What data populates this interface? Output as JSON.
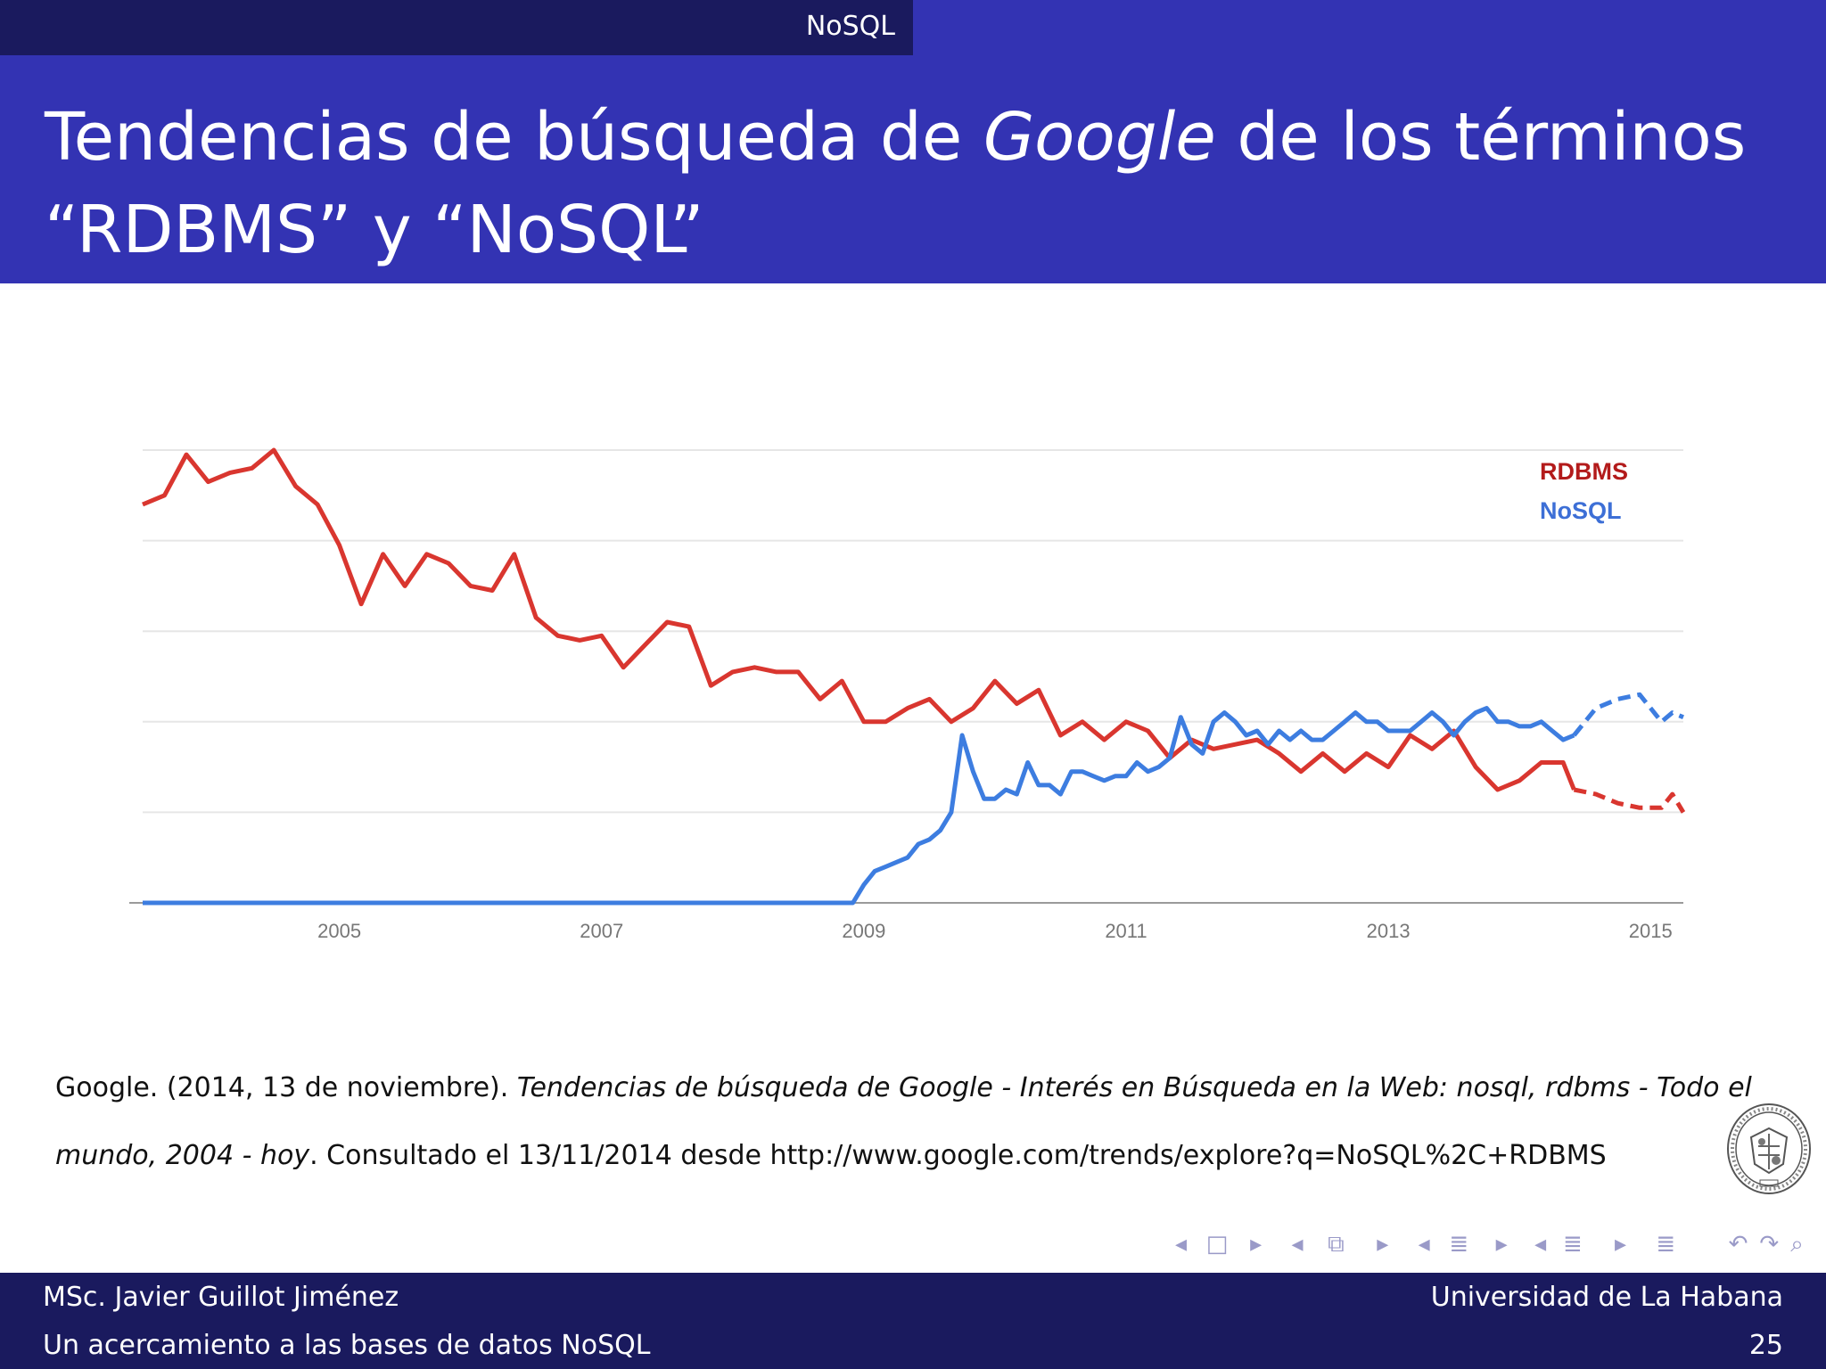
{
  "header": {
    "section": "NoSQL"
  },
  "title": {
    "line1_pre": "Tendencias de búsqueda de ",
    "line1_italic": "Google",
    "line1_post": " de los términos",
    "line2": "“RDBMS” y “NoSQL”"
  },
  "chart_data": {
    "type": "line",
    "title": "",
    "xlabel": "",
    "ylabel": "",
    "x_range": [
      "2004-01",
      "2015-10"
    ],
    "ylim": [
      0,
      100
    ],
    "grid": true,
    "legend_position": "top-right",
    "x_tick_labels": [
      "2005",
      "2007",
      "2009",
      "2011",
      "2013",
      "2015"
    ],
    "series": [
      {
        "name": "RDBMS",
        "color": "#d9362f",
        "legend_color": "#b31b1b",
        "dashed_from": "2014-12",
        "points": [
          [
            "2004-01",
            88
          ],
          [
            "2004-03",
            90
          ],
          [
            "2004-05",
            99
          ],
          [
            "2004-07",
            93
          ],
          [
            "2004-09",
            95
          ],
          [
            "2004-11",
            96
          ],
          [
            "2005-01",
            100
          ],
          [
            "2005-03",
            92
          ],
          [
            "2005-05",
            88
          ],
          [
            "2005-07",
            79
          ],
          [
            "2005-09",
            66
          ],
          [
            "2005-11",
            77
          ],
          [
            "2006-01",
            70
          ],
          [
            "2006-03",
            77
          ],
          [
            "2006-05",
            75
          ],
          [
            "2006-07",
            70
          ],
          [
            "2006-09",
            69
          ],
          [
            "2006-11",
            77
          ],
          [
            "2007-01",
            63
          ],
          [
            "2007-03",
            59
          ],
          [
            "2007-05",
            58
          ],
          [
            "2007-07",
            59
          ],
          [
            "2007-09",
            52
          ],
          [
            "2007-11",
            57
          ],
          [
            "2008-01",
            62
          ],
          [
            "2008-03",
            61
          ],
          [
            "2008-05",
            48
          ],
          [
            "2008-07",
            51
          ],
          [
            "2008-09",
            52
          ],
          [
            "2008-11",
            51
          ],
          [
            "2009-01",
            51
          ],
          [
            "2009-03",
            45
          ],
          [
            "2009-05",
            49
          ],
          [
            "2009-07",
            40
          ],
          [
            "2009-09",
            40
          ],
          [
            "2009-11",
            43
          ],
          [
            "2010-01",
            45
          ],
          [
            "2010-03",
            40
          ],
          [
            "2010-05",
            43
          ],
          [
            "2010-07",
            49
          ],
          [
            "2010-09",
            44
          ],
          [
            "2010-11",
            47
          ],
          [
            "2011-01",
            37
          ],
          [
            "2011-03",
            40
          ],
          [
            "2011-05",
            36
          ],
          [
            "2011-07",
            40
          ],
          [
            "2011-09",
            38
          ],
          [
            "2011-11",
            32
          ],
          [
            "2012-01",
            36
          ],
          [
            "2012-03",
            34
          ],
          [
            "2012-05",
            35
          ],
          [
            "2012-07",
            36
          ],
          [
            "2012-09",
            33
          ],
          [
            "2012-11",
            29
          ],
          [
            "2013-01",
            33
          ],
          [
            "2013-03",
            29
          ],
          [
            "2013-05",
            33
          ],
          [
            "2013-07",
            30
          ],
          [
            "2013-09",
            37
          ],
          [
            "2013-11",
            34
          ],
          [
            "2014-01",
            38
          ],
          [
            "2014-03",
            30
          ],
          [
            "2014-05",
            25
          ],
          [
            "2014-07",
            27
          ],
          [
            "2014-09",
            31
          ],
          [
            "2014-11",
            31
          ],
          [
            "2014-12",
            25
          ],
          [
            "2015-02",
            24
          ],
          [
            "2015-04",
            22
          ],
          [
            "2015-06",
            21
          ],
          [
            "2015-08",
            21
          ],
          [
            "2015-09",
            24
          ],
          [
            "2015-10",
            20
          ]
        ]
      },
      {
        "name": "NoSQL",
        "color": "#3d7de0",
        "legend_color": "#3d6fd6",
        "dashed_from": "2014-12",
        "points": [
          [
            "2004-01",
            0
          ],
          [
            "2004-11",
            0
          ],
          [
            "2005-11",
            0
          ],
          [
            "2006-11",
            0
          ],
          [
            "2007-11",
            0
          ],
          [
            "2008-11",
            0
          ],
          [
            "2009-06",
            0
          ],
          [
            "2009-07",
            4
          ],
          [
            "2009-08",
            7
          ],
          [
            "2009-09",
            8
          ],
          [
            "2009-10",
            9
          ],
          [
            "2009-11",
            10
          ],
          [
            "2009-12",
            13
          ],
          [
            "2010-01",
            14
          ],
          [
            "2010-02",
            16
          ],
          [
            "2010-03",
            20
          ],
          [
            "2010-04",
            37
          ],
          [
            "2010-05",
            29
          ],
          [
            "2010-06",
            23
          ],
          [
            "2010-07",
            23
          ],
          [
            "2010-08",
            25
          ],
          [
            "2010-09",
            24
          ],
          [
            "2010-10",
            31
          ],
          [
            "2010-11",
            26
          ],
          [
            "2010-12",
            26
          ],
          [
            "2011-01",
            24
          ],
          [
            "2011-02",
            29
          ],
          [
            "2011-03",
            29
          ],
          [
            "2011-04",
            28
          ],
          [
            "2011-05",
            27
          ],
          [
            "2011-06",
            28
          ],
          [
            "2011-07",
            28
          ],
          [
            "2011-08",
            31
          ],
          [
            "2011-09",
            29
          ],
          [
            "2011-10",
            30
          ],
          [
            "2011-11",
            32
          ],
          [
            "2011-12",
            41
          ],
          [
            "2012-01",
            35
          ],
          [
            "2012-02",
            33
          ],
          [
            "2012-03",
            40
          ],
          [
            "2012-04",
            42
          ],
          [
            "2012-05",
            40
          ],
          [
            "2012-06",
            37
          ],
          [
            "2012-07",
            38
          ],
          [
            "2012-08",
            35
          ],
          [
            "2012-09",
            38
          ],
          [
            "2012-10",
            36
          ],
          [
            "2012-11",
            38
          ],
          [
            "2012-12",
            36
          ],
          [
            "2013-01",
            36
          ],
          [
            "2013-02",
            38
          ],
          [
            "2013-03",
            40
          ],
          [
            "2013-04",
            42
          ],
          [
            "2013-05",
            40
          ],
          [
            "2013-06",
            40
          ],
          [
            "2013-07",
            38
          ],
          [
            "2013-08",
            38
          ],
          [
            "2013-09",
            38
          ],
          [
            "2013-10",
            40
          ],
          [
            "2013-11",
            42
          ],
          [
            "2013-12",
            40
          ],
          [
            "2014-01",
            37
          ],
          [
            "2014-02",
            40
          ],
          [
            "2014-03",
            42
          ],
          [
            "2014-04",
            43
          ],
          [
            "2014-05",
            40
          ],
          [
            "2014-06",
            40
          ],
          [
            "2014-07",
            39
          ],
          [
            "2014-08",
            39
          ],
          [
            "2014-09",
            40
          ],
          [
            "2014-10",
            38
          ],
          [
            "2014-11",
            36
          ],
          [
            "2014-12",
            37
          ],
          [
            "2015-02",
            43
          ],
          [
            "2015-04",
            45
          ],
          [
            "2015-06",
            46
          ],
          [
            "2015-08",
            40
          ],
          [
            "2015-09",
            42
          ],
          [
            "2015-10",
            41
          ]
        ]
      }
    ]
  },
  "citation": {
    "author": "Google. (2014, 13 de noviembre). ",
    "work_title_1": "Tendencias de búsqueda de Google - Interés en Búsqueda en la Web: nosql, rdbms - Todo el mundo, 2004 - hoy",
    "rest": ". Consultado el 13/11/2014 desde http://www.google.com/trends/explore?q=NoSQL%2C+RDBMS"
  },
  "nav": {
    "symbols": [
      "◂",
      "□",
      "▸",
      "◂",
      "⧉",
      "▸",
      "◂",
      "≣",
      "▸",
      "◂",
      "≣",
      "▸",
      "≣",
      "↶",
      "↷",
      "⌕"
    ]
  },
  "footer": {
    "author": "MSc. Javier Guillot Jiménez",
    "institution": "Universidad de La Habana",
    "talk_title": "Un acercamiento a las bases de datos NoSQL",
    "page_number": "25"
  }
}
